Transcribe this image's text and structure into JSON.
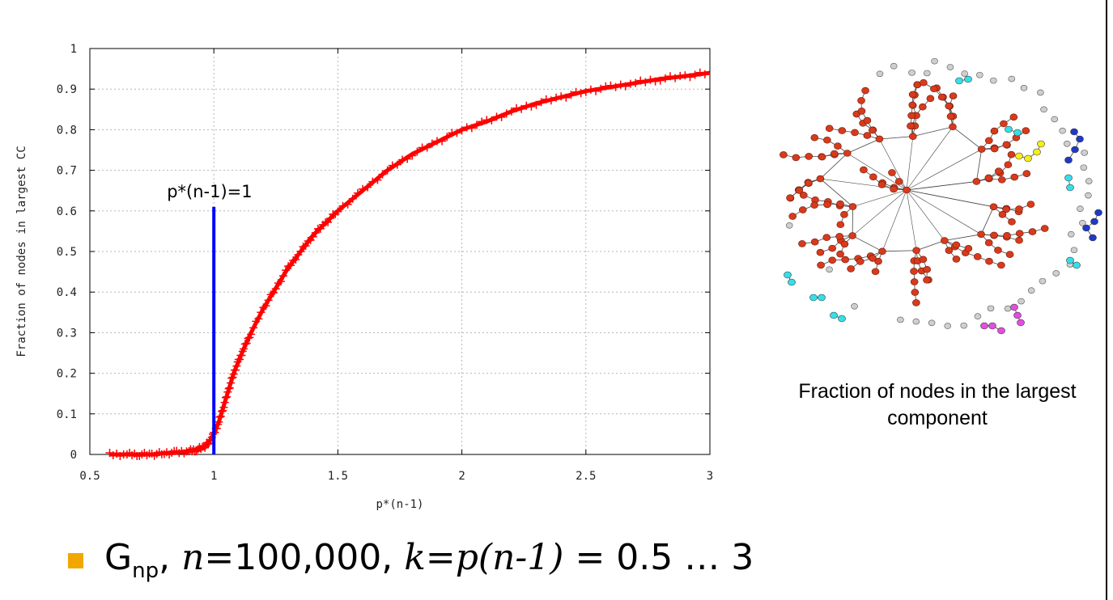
{
  "chart_data": {
    "type": "scatter",
    "xlabel": "p*(n-1)",
    "ylabel": "Fraction of nodes in largest CC",
    "xlim": [
      0.5,
      3
    ],
    "ylim": [
      0,
      1
    ],
    "grid": true,
    "x_ticks": [
      "0.5",
      "1",
      "1.5",
      "2",
      "2.5",
      "3"
    ],
    "y_ticks": [
      "0",
      "0.1",
      "0.2",
      "0.3",
      "0.4",
      "0.5",
      "0.6",
      "0.7",
      "0.8",
      "0.9",
      "1"
    ],
    "series": [
      {
        "color": "#ff0000",
        "marker": "plus",
        "x": [
          0.58,
          0.65,
          0.7,
          0.75,
          0.8,
          0.85,
          0.9,
          0.93,
          0.96,
          0.98,
          1.0,
          1.02,
          1.04,
          1.06,
          1.08,
          1.1,
          1.12,
          1.15,
          1.2,
          1.25,
          1.3,
          1.35,
          1.4,
          1.45,
          1.5,
          1.6,
          1.7,
          1.8,
          1.9,
          2.0,
          2.1,
          2.2,
          2.3,
          2.4,
          2.5,
          2.6,
          2.7,
          2.8,
          2.9,
          3.0
        ],
        "y": [
          0.0,
          0.0,
          0.0,
          0.0,
          0.003,
          0.005,
          0.008,
          0.012,
          0.018,
          0.03,
          0.05,
          0.08,
          0.12,
          0.16,
          0.2,
          0.23,
          0.26,
          0.3,
          0.36,
          0.41,
          0.46,
          0.5,
          0.54,
          0.57,
          0.6,
          0.65,
          0.7,
          0.74,
          0.77,
          0.8,
          0.82,
          0.845,
          0.865,
          0.88,
          0.895,
          0.905,
          0.915,
          0.925,
          0.932,
          0.94
        ]
      }
    ],
    "annotation": {
      "text": "p*(n-1)=1",
      "x": 1,
      "y_top": 0.61,
      "color": "#0000ff"
    }
  },
  "network": {
    "caption": "Fraction of nodes in the largest component",
    "colors": {
      "giant": "#d83a1c",
      "isolated": "#cfcfcf",
      "cyan": "#33e0ea",
      "yellow": "#f5ee1a",
      "blue": "#1f39c9",
      "magenta": "#e24fe0"
    }
  },
  "bullet": {
    "g": "G",
    "g_sub": "np",
    "sep1": ", ",
    "n_var": "n",
    "n_val": "=100,000, ",
    "k_expr": "k=p(n-1)",
    "range": " = 0.5 … 3"
  }
}
